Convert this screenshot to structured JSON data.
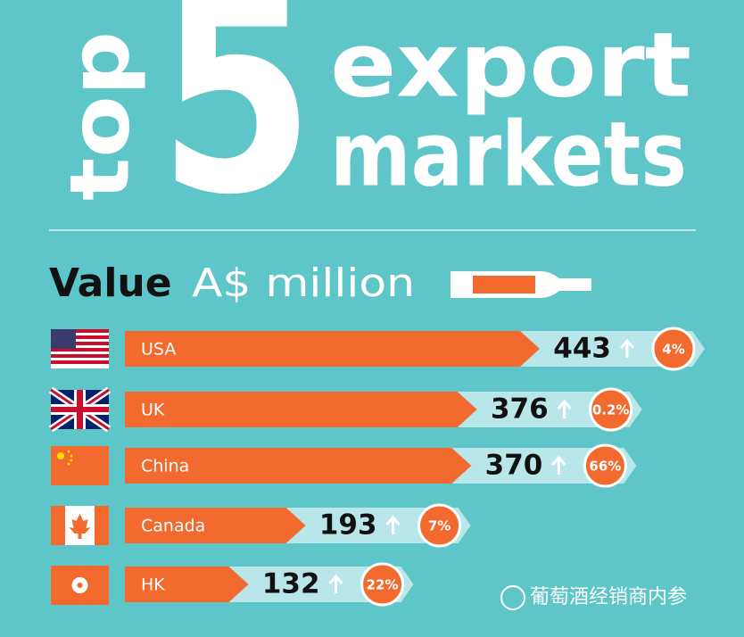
{
  "chart_data": {
    "type": "bar",
    "title_small": "top",
    "title_number": "5",
    "title_line1": "export",
    "title_line2": "markets",
    "subtitle_bold": "Value",
    "subtitle_unit": "A$ million",
    "categories": [
      "USA",
      "UK",
      "China",
      "Canada",
      "HK"
    ],
    "values": [
      443,
      376,
      370,
      193,
      132
    ],
    "color": "#f26a2e",
    "growth": {
      "values": [
        4,
        0.2,
        66,
        7,
        22
      ],
      "value_labels": [
        "4%",
        "0.2%",
        "66%",
        "7%",
        "22%"
      ],
      "color": "#f26a2e"
    }
  },
  "watermark": "葡萄酒经销商内参"
}
